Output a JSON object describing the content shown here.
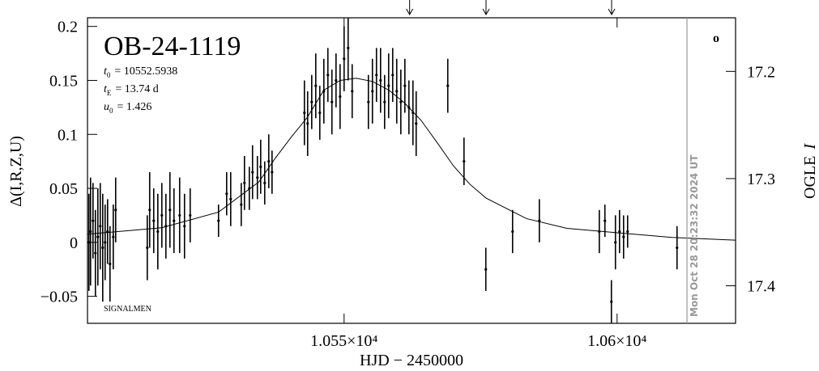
{
  "chart_data": {
    "type": "scatter",
    "title": "OB-24-1119",
    "annotations": [
      {
        "symbol": "t",
        "subscript": "0",
        "text": "= 10552.5938"
      },
      {
        "symbol": "t",
        "subscript": "E",
        "text": "= 13.74 d"
      },
      {
        "symbol": "u",
        "subscript": "0",
        "text": "= 1.426"
      }
    ],
    "credit": "SIGNALMEN",
    "timestamp": "Mon Oct 28 20:23:32 2024 UT",
    "timestamp_x": 10612.8,
    "corner_symbol": "o",
    "arrows_x": [
      10562.0,
      10576.0,
      10599.0
    ],
    "ylabel": "Δ(I,R,Z,U)",
    "y2label_text": "OGLE",
    "y2label_var": "I",
    "xlabel": "HJD − 2450000",
    "xlim": [
      10503.0,
      10621.7
    ],
    "xticks": [
      {
        "value": 10550,
        "label": "1.055×10⁴"
      },
      {
        "value": 10600,
        "label": "1.06×10⁴"
      }
    ],
    "ylim": [
      -0.075,
      0.208
    ],
    "yticks": [
      {
        "value": -0.05,
        "label": "−0.05"
      },
      0,
      0.05,
      0.1,
      0.15,
      0.2
    ],
    "y2lim": [
      17.435,
      17.15
    ],
    "y2ticks": [
      17.2,
      17.3,
      17.4
    ],
    "series": [
      {
        "color": "#000000",
        "x": [
          10503.26,
          10503.56,
          10504.01,
          10504.45,
          10504.9,
          10505.34,
          10505.79,
          10506.23,
          10506.68,
          10507.12,
          10507.72,
          10508.16,
          10513.95,
          10514.39,
          10515.13,
          10515.88,
          10516.62,
          10517.36,
          10518.1,
          10518.84,
          10519.88,
          10520.77,
          10521.81,
          10527.0,
          10528.49,
          10529.23,
          10531.16,
          10531.75,
          10532.64,
          10533.23,
          10534.12,
          10534.72,
          10535.46,
          10536.2,
          10536.8,
          10542.73,
          10543.32,
          10544.07,
          10544.81,
          10545.55,
          10546.29,
          10547.03,
          10547.77,
          10548.52,
          10549.26,
          10550.0,
          10550.74,
          10551.48,
          10554.45,
          10555.19,
          10555.93,
          10556.68,
          10557.42,
          10558.16,
          10558.9,
          10559.64,
          10560.39,
          10561.13,
          10561.87,
          10562.61,
          10563.2,
          10568.99,
          10571.96,
          10575.96,
          10580.86,
          10585.76,
          10596.74,
          10597.77,
          10598.96,
          10599.7,
          10600.45,
          10601.19,
          10601.93,
          10610.98
        ],
        "values": [
          0.0,
          0.01,
          0.02,
          -0.01,
          0.005,
          0.015,
          -0.005,
          0.0,
          0.01,
          -0.02,
          0.005,
          0.03,
          -0.005,
          0.03,
          0.02,
          0.01,
          0.025,
          0.015,
          0.03,
          0.02,
          0.025,
          0.015,
          0.025,
          0.02,
          0.045,
          0.04,
          0.035,
          0.055,
          0.05,
          0.065,
          0.06,
          0.07,
          0.055,
          0.075,
          0.065,
          0.12,
          0.11,
          0.13,
          0.145,
          0.12,
          0.14,
          0.155,
          0.13,
          0.15,
          0.135,
          0.17,
          0.18,
          0.14,
          0.13,
          0.14,
          0.155,
          0.15,
          0.13,
          0.145,
          0.155,
          0.14,
          0.13,
          0.145,
          0.125,
          0.12,
          0.11,
          0.145,
          0.075,
          -0.025,
          0.01,
          0.02,
          0.01,
          0.02,
          -0.055,
          0.0,
          0.01,
          0.005,
          0.01,
          -0.005
        ],
        "errors": [
          0.045,
          0.05,
          0.035,
          0.04,
          0.045,
          0.04,
          0.05,
          0.035,
          0.03,
          0.035,
          0.03,
          0.03,
          0.03,
          0.035,
          0.03,
          0.035,
          0.03,
          0.03,
          0.035,
          0.03,
          0.035,
          0.03,
          0.025,
          0.015,
          0.02,
          0.025,
          0.02,
          0.025,
          0.02,
          0.025,
          0.02,
          0.025,
          0.02,
          0.025,
          0.02,
          0.03,
          0.03,
          0.025,
          0.03,
          0.025,
          0.03,
          0.025,
          0.03,
          0.025,
          0.03,
          0.03,
          0.03,
          0.025,
          0.025,
          0.03,
          0.025,
          0.03,
          0.025,
          0.03,
          0.025,
          0.03,
          0.03,
          0.025,
          0.025,
          0.03,
          0.03,
          0.025,
          0.022,
          0.02,
          0.02,
          0.02,
          0.02,
          0.015,
          0.02,
          0.025,
          0.02,
          0.02,
          0.015,
          0.02
        ]
      }
    ],
    "model": {
      "color": "#000000",
      "x": [
        10503.0,
        10516.6,
        10527.0,
        10534.4,
        10537.4,
        10540.4,
        10543.3,
        10546.3,
        10549.3,
        10552.2,
        10555.2,
        10558.2,
        10561.1,
        10564.1,
        10567.1,
        10570.0,
        10573.0,
        10576.0,
        10583.4,
        10590.8,
        10599.7,
        10610.1,
        10621.7
      ],
      "values": [
        0.0075,
        0.0135,
        0.028,
        0.056,
        0.078,
        0.098,
        0.116,
        0.141,
        0.15,
        0.152,
        0.149,
        0.141,
        0.129,
        0.113,
        0.092,
        0.071,
        0.054,
        0.041,
        0.022,
        0.013,
        0.009,
        0.0045,
        0.002
      ]
    }
  }
}
